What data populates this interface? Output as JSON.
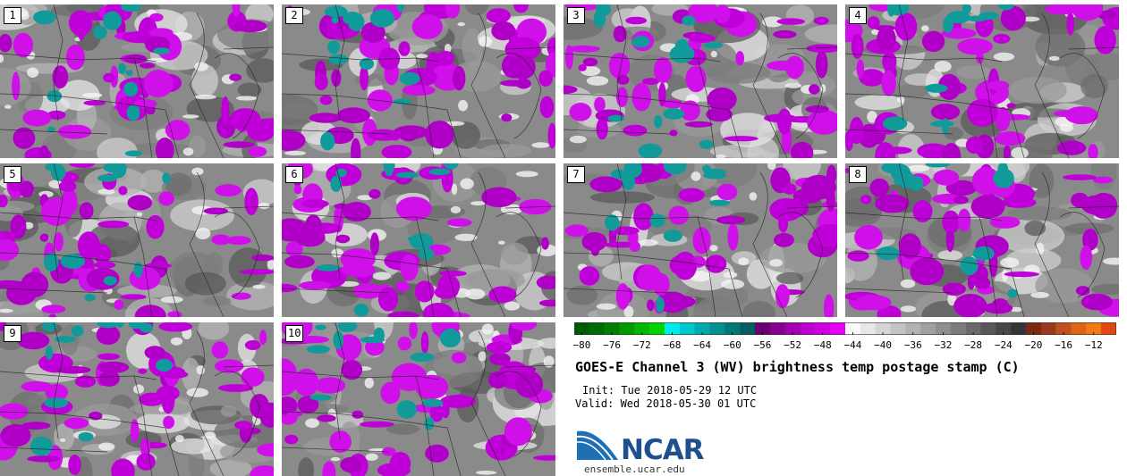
{
  "title": "GOES-E Channel 3 (WV) brightness temp postage stamp (C)",
  "init_text": "Init: Tue 2018-05-29 12 UTC",
  "valid_text": "Valid: Wed 2018-05-30 01 UTC",
  "logo": {
    "name": "NCAR",
    "url_text": "ensemble.ucar.edu"
  },
  "panels": [
    {
      "label": "1"
    },
    {
      "label": "2"
    },
    {
      "label": "3"
    },
    {
      "label": "4"
    },
    {
      "label": "5"
    },
    {
      "label": "6"
    },
    {
      "label": "7"
    },
    {
      "label": "8"
    },
    {
      "label": "9"
    },
    {
      "label": "10"
    }
  ],
  "colorbar": {
    "ticks": [
      "−80",
      "−76",
      "−72",
      "−68",
      "−64",
      "−60",
      "−56",
      "−52",
      "−48",
      "−44",
      "−40",
      "−36",
      "−32",
      "−28",
      "−24",
      "−20",
      "−16",
      "−12"
    ],
    "min": -81,
    "max": -9,
    "step": 2,
    "colors": [
      "#005a00",
      "#006c00",
      "#008000",
      "#009a00",
      "#00b800",
      "#00d400",
      "#00ecec",
      "#00c8c8",
      "#00aaaa",
      "#009090",
      "#007878",
      "#006060",
      "#6a0070",
      "#880090",
      "#a200b0",
      "#bc00cc",
      "#d000e0",
      "#e400f0",
      "#fafafa",
      "#e8e8e8",
      "#d6d6d6",
      "#c4c4c4",
      "#b2b2b2",
      "#a0a0a0",
      "#8e8e8e",
      "#7c7c7c",
      "#6a6a6a",
      "#585858",
      "#464646",
      "#343434",
      "#7a2a14",
      "#9a3a1a",
      "#c0501c",
      "#e06418",
      "#f07a14",
      "#e04a10"
    ]
  }
}
